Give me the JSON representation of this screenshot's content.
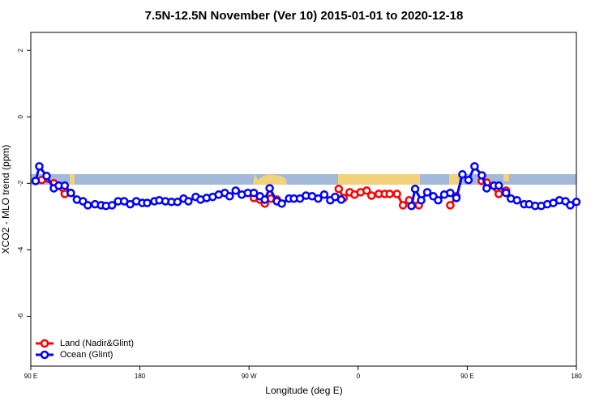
{
  "chart_data": {
    "type": "line",
    "title": "7.5N-12.5N November (Ver 10)   2015-01-01 to 2020-12-18",
    "x_label": "Longitude (deg E)",
    "y_label": "XCO2 - MLO trend (ppm)",
    "xlim": [
      90,
      540
    ],
    "ylim": [
      -7.5,
      2.54
    ],
    "xticks": [
      {
        "value": 90,
        "label": "90 E"
      },
      180,
      {
        "value": 270,
        "label": "90 W"
      },
      {
        "value": 360,
        "label": "0"
      },
      {
        "value": 450,
        "label": "90 E"
      },
      {
        "value": 540,
        "label": "180"
      }
    ],
    "yticks": [
      2,
      0,
      -2,
      -4,
      -6
    ],
    "legend": "bottomleft",
    "series": [
      {
        "name": "Land (Nadir&Glint)",
        "color": "#ff0000",
        "x": [
          99,
          109,
          118,
          123,
          200,
          274,
          279,
          283,
          288,
          293,
          300,
          344,
          348,
          353,
          357,
          362,
          367,
          371,
          377,
          382,
          386,
          392,
          397,
          402,
          410,
          420,
          436,
          441,
          450,
          462,
          466,
          476,
          482
        ],
        "values": [
          -1.9,
          -2.0,
          -2.32,
          -2.29,
          null,
          -2.44,
          -2.49,
          -2.61,
          -2.46,
          -2.49,
          null,
          -2.17,
          -2.44,
          -2.27,
          -2.34,
          -2.27,
          -2.22,
          -2.37,
          -2.32,
          -2.32,
          -2.32,
          -2.32,
          -2.66,
          -2.51,
          -2.66,
          null,
          -2.66,
          -2.39,
          null,
          -1.93,
          -1.98,
          -2.32,
          -2.22
        ]
      },
      {
        "name": "Ocean (Glint)",
        "color": "#0000ff",
        "x": [
          94,
          97,
          103,
          109,
          113,
          118,
          123,
          128,
          133,
          137,
          143,
          148,
          152,
          157,
          162,
          167,
          172,
          177,
          182,
          186,
          192,
          196,
          201,
          206,
          211,
          216,
          220,
          226,
          230,
          235,
          240,
          245,
          250,
          254,
          259,
          264,
          269,
          274,
          279,
          283,
          287,
          293,
          297,
          303,
          307,
          312,
          317,
          322,
          327,
          332,
          337,
          341,
          346,
          375,
          404,
          407,
          412,
          417,
          422,
          426,
          431,
          436,
          441,
          446,
          451,
          456,
          462,
          466,
          472,
          476,
          482,
          486,
          491,
          497,
          501,
          506,
          511,
          516,
          521,
          526,
          531,
          535,
          540
        ],
        "values": [
          -1.93,
          -1.49,
          -1.78,
          -2.15,
          -2.07,
          -2.07,
          -2.29,
          -2.49,
          -2.54,
          -2.66,
          -2.63,
          -2.66,
          -2.68,
          -2.66,
          -2.54,
          -2.54,
          -2.63,
          -2.54,
          -2.59,
          -2.59,
          -2.54,
          -2.51,
          -2.54,
          -2.56,
          -2.56,
          -2.46,
          -2.54,
          -2.41,
          -2.49,
          -2.44,
          -2.41,
          -2.34,
          -2.29,
          -2.39,
          -2.22,
          -2.34,
          -2.29,
          -2.29,
          -2.39,
          -2.49,
          -2.15,
          -2.54,
          -2.61,
          -2.46,
          -2.46,
          -2.46,
          -2.37,
          -2.39,
          -2.46,
          -2.34,
          -2.51,
          -2.41,
          -2.49,
          null,
          -2.68,
          -2.17,
          -2.51,
          -2.27,
          -2.39,
          -2.51,
          -2.34,
          -2.29,
          -2.44,
          -1.73,
          -1.9,
          -1.49,
          -1.76,
          -2.15,
          -2.07,
          -2.07,
          -2.29,
          -2.46,
          -2.51,
          -2.63,
          -2.63,
          -2.68,
          -2.68,
          -2.63,
          -2.59,
          -2.51,
          -2.54,
          -2.66,
          -2.56
        ]
      }
    ]
  }
}
